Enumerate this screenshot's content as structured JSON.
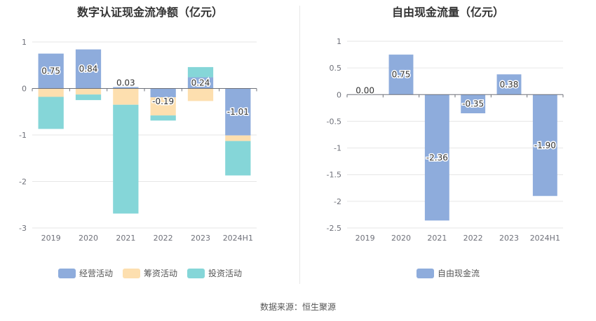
{
  "chart_data": [
    {
      "type": "bar",
      "stacked": true,
      "title": "数字认证现金流净额（亿元）",
      "categories": [
        "2019",
        "2020",
        "2021",
        "2022",
        "2023",
        "2024H1"
      ],
      "ylim": [
        -3,
        1
      ],
      "yticks": [
        1,
        0,
        -1,
        -2,
        -3
      ],
      "grid": true,
      "legend_position": "bottom",
      "series": [
        {
          "name": "经营活动",
          "color": "#8eacdc",
          "values": [
            0.75,
            0.84,
            0.03,
            -0.19,
            0.24,
            -1.01
          ],
          "labels": [
            "0.75",
            "0.84",
            "0.03",
            "-0.19",
            "0.24",
            "-1.01"
          ]
        },
        {
          "name": "筹资活动",
          "color": "#fddfaf",
          "values": [
            -0.18,
            -0.13,
            -0.35,
            -0.39,
            -0.27,
            -0.12
          ]
        },
        {
          "name": "投资活动",
          "color": "#85d6d8",
          "values": [
            -0.69,
            -0.12,
            -2.34,
            -0.11,
            0.22,
            -0.74
          ]
        }
      ]
    },
    {
      "type": "bar",
      "title": "自由现金流量（亿元）",
      "categories": [
        "2019",
        "2020",
        "2021",
        "2022",
        "2023",
        "2024H1"
      ],
      "ylim": [
        -2.5,
        1
      ],
      "yticks": [
        1,
        0.5,
        0,
        -0.5,
        -1,
        -1.5,
        -2,
        -2.5
      ],
      "grid": true,
      "legend_position": "bottom",
      "series": [
        {
          "name": "自由现金流",
          "color": "#8eacdc",
          "values": [
            0.0,
            0.75,
            -2.36,
            -0.35,
            0.38,
            -1.9
          ],
          "labels": [
            "0.00",
            "0.75",
            "-2.36",
            "-0.35",
            "0.38",
            "-1.90"
          ]
        }
      ]
    }
  ],
  "source_text": "数据来源：恒生聚源"
}
